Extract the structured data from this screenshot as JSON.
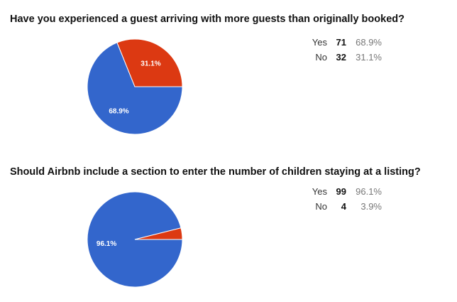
{
  "chart_data": [
    {
      "type": "pie",
      "title": "Have you experienced a guest arriving with more guests than originally booked?",
      "slices": [
        {
          "label": "Yes",
          "count": 71,
          "percent": "68.9%",
          "value": 68.9,
          "color": "#3366cc"
        },
        {
          "label": "No",
          "count": 32,
          "percent": "31.1%",
          "value": 31.1,
          "color": "#dc3912"
        }
      ]
    },
    {
      "type": "pie",
      "title": "Should Airbnb include a section to enter the number of children staying at a listing?",
      "slices": [
        {
          "label": "Yes",
          "count": 99,
          "percent": "96.1%",
          "value": 96.1,
          "color": "#3366cc"
        },
        {
          "label": "No",
          "count": 4,
          "percent": "3.9%",
          "value": 3.9,
          "color": "#dc3912"
        }
      ]
    }
  ]
}
